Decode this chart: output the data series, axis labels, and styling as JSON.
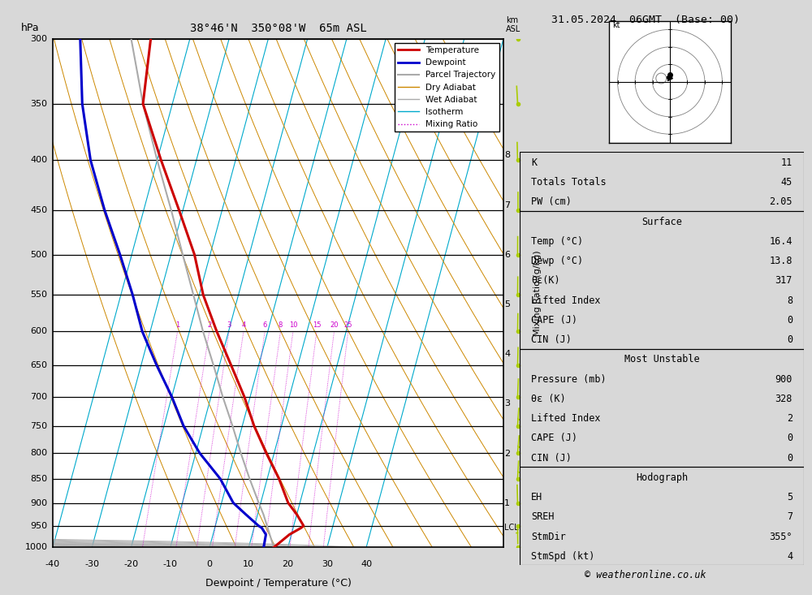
{
  "title_left": "38°46'N  350°08'W  65m ASL",
  "title_right": "31.05.2024  06GMT  (Base: 00)",
  "xlabel": "Dewpoint / Temperature (°C)",
  "mixing_ratio_label": "Mixing Ratio (g/kg)",
  "pressure_levels": [
    300,
    350,
    400,
    450,
    500,
    550,
    600,
    650,
    700,
    750,
    800,
    850,
    900,
    950,
    1000
  ],
  "T_min": -40,
  "T_max": 40,
  "P_min": 300,
  "P_max": 1000,
  "skew": 35.0,
  "temp_profile": {
    "pressure": [
      1000,
      970,
      955,
      950,
      925,
      900,
      850,
      800,
      750,
      700,
      650,
      600,
      550,
      500,
      450,
      400,
      350,
      300
    ],
    "temp": [
      16.4,
      19.5,
      22.0,
      22.5,
      20.0,
      17.0,
      13.0,
      8.0,
      3.0,
      -1.5,
      -7.0,
      -13.0,
      -19.0,
      -24.0,
      -31.0,
      -39.0,
      -47.5,
      -50.0
    ]
  },
  "dewp_profile": {
    "pressure": [
      1000,
      970,
      955,
      950,
      925,
      900,
      850,
      800,
      750,
      700,
      650,
      600,
      550,
      500,
      450,
      400,
      350,
      300
    ],
    "dewp": [
      13.8,
      13.5,
      12.0,
      11.0,
      7.0,
      3.0,
      -2.0,
      -9.0,
      -15.0,
      -20.0,
      -26.0,
      -32.0,
      -37.0,
      -43.0,
      -50.0,
      -57.0,
      -63.0,
      -68.0
    ]
  },
  "parcel_profile": {
    "pressure": [
      1000,
      955,
      925,
      900,
      850,
      800,
      750,
      700,
      650,
      600,
      550,
      500,
      450,
      400,
      350,
      300
    ],
    "temp": [
      16.4,
      13.5,
      11.5,
      9.5,
      5.5,
      1.5,
      -2.5,
      -7.0,
      -11.5,
      -16.5,
      -21.5,
      -27.0,
      -33.0,
      -40.0,
      -47.5,
      -55.0
    ]
  },
  "lcl_pressure": 955,
  "mixing_ratios": [
    1,
    2,
    3,
    4,
    6,
    8,
    10,
    15,
    20,
    25
  ],
  "dry_adiabat_thetas": [
    270,
    280,
    290,
    300,
    310,
    320,
    330,
    340,
    350,
    360,
    370,
    380,
    390,
    400,
    410,
    420
  ],
  "moist_adiabat_t0s": [
    -15,
    -10,
    -5,
    0,
    5,
    10,
    15,
    20,
    25,
    30,
    35,
    40
  ],
  "isotherm_temps": [
    -40,
    -30,
    -20,
    -10,
    0,
    10,
    20,
    30,
    40
  ],
  "km_values": [
    1,
    2,
    3,
    4,
    5,
    6,
    7,
    8
  ],
  "wind_p": [
    1000,
    950,
    900,
    850,
    800,
    750,
    700,
    650,
    600,
    550,
    500,
    450,
    400,
    350,
    300
  ],
  "wind_dir": [
    180,
    178,
    355,
    10,
    15,
    12,
    8,
    5,
    3,
    2,
    1,
    0,
    355,
    350,
    345
  ],
  "wind_spd": [
    4,
    5,
    4,
    6,
    5,
    5,
    4,
    4,
    3,
    3,
    3,
    3,
    4,
    4,
    5
  ],
  "colors": {
    "temperature": "#cc0000",
    "dewpoint": "#0000cc",
    "parcel": "#aaaaaa",
    "dry_adiabat": "#cc8800",
    "wet_adiabat": "#aaaaaa",
    "isotherm": "#00aacc",
    "mixing_ratio": "#cc00cc",
    "wind_barb": "#aacc00",
    "pressure_line": "#000000"
  },
  "stats": {
    "K": "11",
    "Totals_Totals": "45",
    "PW_cm": "2.05",
    "Surface_Temp": "16.4",
    "Surface_Dewp": "13.8",
    "theta_e_K": "317",
    "Lifted_Index": "8",
    "CAPE_J": "0",
    "CIN_J": "0",
    "MU_Pressure_mb": "900",
    "MU_theta_e_K": "328",
    "MU_Lifted_Index": "2",
    "MU_CAPE_J": "0",
    "MU_CIN_J": "0",
    "EH": "5",
    "SREH": "7",
    "StmDir_deg": "355°",
    "StmSpd_kt": "4"
  }
}
